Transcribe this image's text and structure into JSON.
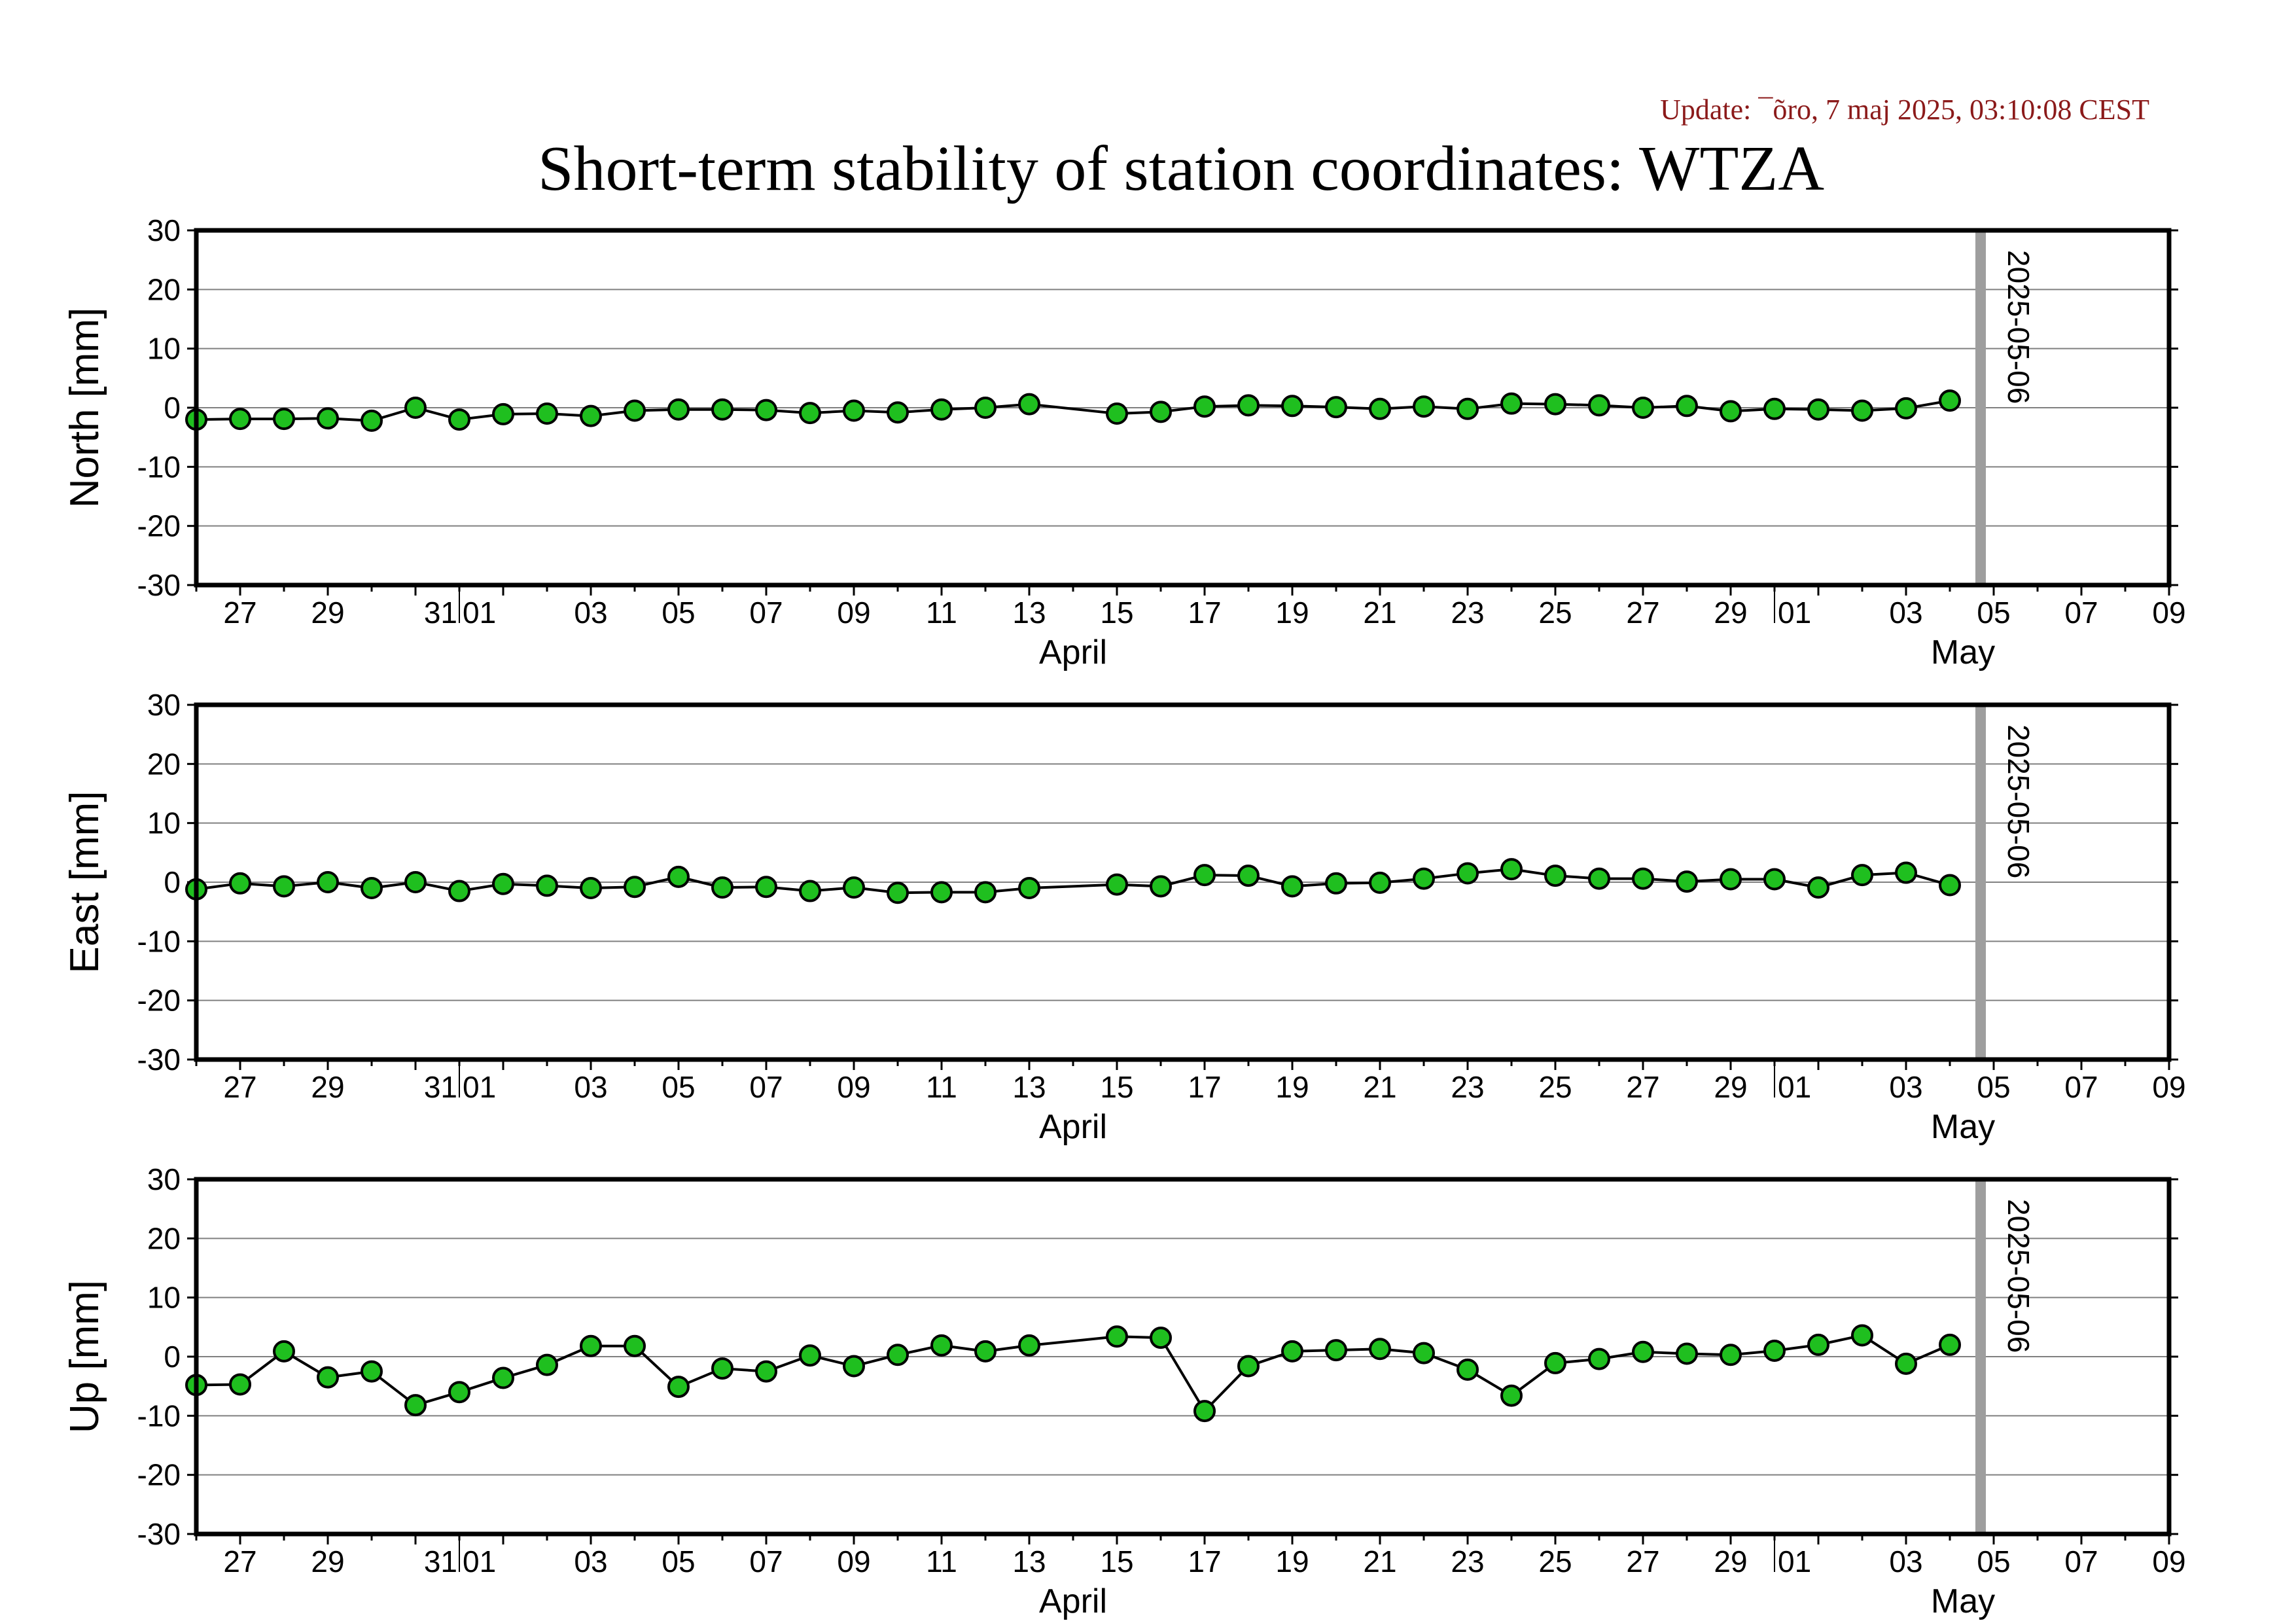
{
  "update_text": "Update: ¯õro, 7 maj 2025, 03:10:08 CEST",
  "title": "Short-term stability of station coordinates: WTZA",
  "colors": {
    "marker_fill": "#1fbf1f",
    "marker_stroke": "#000000",
    "line": "#000000",
    "gridline": "#808080",
    "marker_line": "#9e9e9e",
    "update_text": "#8b1a1a"
  },
  "chart_data": [
    {
      "type": "line",
      "ylabel": "North [mm]",
      "ylim": [
        -30,
        30
      ],
      "yticks": [
        30,
        20,
        10,
        0,
        -10,
        -20,
        -30
      ],
      "grid": true,
      "xlim": [
        "2025-03-26",
        "2025-05-10"
      ],
      "x_tick_labels": [
        "27",
        "29",
        "31",
        "01",
        "03",
        "05",
        "07",
        "09",
        "11",
        "13",
        "15",
        "17",
        "19",
        "21",
        "23",
        "25",
        "27",
        "29",
        "01",
        "03",
        "05",
        "07",
        "09"
      ],
      "month_labels": [
        "April",
        "May"
      ],
      "marker_label": "2025-05-06",
      "series": [
        {
          "x": [
            "2025-03-26",
            "2025-03-27",
            "2025-03-28",
            "2025-03-29",
            "2025-03-30",
            "2025-03-31",
            "2025-04-01",
            "2025-04-02",
            "2025-04-03",
            "2025-04-04",
            "2025-04-05",
            "2025-04-06",
            "2025-04-07",
            "2025-04-08",
            "2025-04-09",
            "2025-04-10",
            "2025-04-11",
            "2025-04-12",
            "2025-04-13",
            "2025-04-14",
            "2025-04-16",
            "2025-04-17",
            "2025-04-18",
            "2025-04-19",
            "2025-04-20",
            "2025-04-21",
            "2025-04-22",
            "2025-04-23",
            "2025-04-24",
            "2025-04-25",
            "2025-04-26",
            "2025-04-27",
            "2025-04-28",
            "2025-04-29",
            "2025-04-30",
            "2025-05-01",
            "2025-05-02",
            "2025-05-03",
            "2025-05-04",
            "2025-05-05"
          ],
          "values": [
            -2.0,
            -1.9,
            -1.9,
            -1.8,
            -2.2,
            0.0,
            -2.0,
            -1.1,
            -1.0,
            -1.4,
            -0.5,
            -0.3,
            -0.3,
            -0.4,
            -0.9,
            -0.5,
            -0.8,
            -0.3,
            0.0,
            0.6,
            -1.0,
            -0.7,
            0.2,
            0.4,
            0.3,
            0.1,
            -0.2,
            0.2,
            -0.2,
            0.7,
            0.6,
            0.4,
            0.0,
            0.3,
            -0.6,
            -0.2,
            -0.3,
            -0.5,
            -0.1,
            1.2
          ]
        }
      ]
    },
    {
      "type": "line",
      "ylabel": "East [mm]",
      "ylim": [
        -30,
        30
      ],
      "yticks": [
        30,
        20,
        10,
        0,
        -10,
        -20,
        -30
      ],
      "grid": true,
      "xlim": [
        "2025-03-26",
        "2025-05-10"
      ],
      "x_tick_labels": [
        "27",
        "29",
        "31",
        "01",
        "03",
        "05",
        "07",
        "09",
        "11",
        "13",
        "15",
        "17",
        "19",
        "21",
        "23",
        "25",
        "27",
        "29",
        "01",
        "03",
        "05",
        "07",
        "09"
      ],
      "month_labels": [
        "April",
        "May"
      ],
      "marker_label": "2025-05-06",
      "series": [
        {
          "x": [
            "2025-03-26",
            "2025-03-27",
            "2025-03-28",
            "2025-03-29",
            "2025-03-30",
            "2025-03-31",
            "2025-04-01",
            "2025-04-02",
            "2025-04-03",
            "2025-04-04",
            "2025-04-05",
            "2025-04-06",
            "2025-04-07",
            "2025-04-08",
            "2025-04-09",
            "2025-04-10",
            "2025-04-11",
            "2025-04-12",
            "2025-04-13",
            "2025-04-14",
            "2025-04-16",
            "2025-04-17",
            "2025-04-18",
            "2025-04-19",
            "2025-04-20",
            "2025-04-21",
            "2025-04-22",
            "2025-04-23",
            "2025-04-24",
            "2025-04-25",
            "2025-04-26",
            "2025-04-27",
            "2025-04-28",
            "2025-04-29",
            "2025-04-30",
            "2025-05-01",
            "2025-05-02",
            "2025-05-03",
            "2025-05-04",
            "2025-05-05"
          ],
          "values": [
            -1.2,
            -0.2,
            -0.7,
            0.0,
            -1.0,
            0.0,
            -1.5,
            -0.3,
            -0.6,
            -1.0,
            -0.8,
            0.9,
            -0.9,
            -0.8,
            -1.5,
            -0.9,
            -1.8,
            -1.7,
            -1.7,
            -1.0,
            -0.4,
            -0.7,
            1.2,
            1.1,
            -0.7,
            -0.2,
            -0.1,
            0.6,
            1.5,
            2.2,
            1.1,
            0.6,
            0.6,
            0.1,
            0.5,
            0.5,
            -0.9,
            1.2,
            1.6,
            -0.5
          ]
        }
      ]
    },
    {
      "type": "line",
      "ylabel": "Up [mm]",
      "ylim": [
        -30,
        30
      ],
      "yticks": [
        30,
        20,
        10,
        0,
        -10,
        -20,
        -30
      ],
      "grid": true,
      "xlim": [
        "2025-03-26",
        "2025-05-10"
      ],
      "x_tick_labels": [
        "27",
        "29",
        "31",
        "01",
        "03",
        "05",
        "07",
        "09",
        "11",
        "13",
        "15",
        "17",
        "19",
        "21",
        "23",
        "25",
        "27",
        "29",
        "01",
        "03",
        "05",
        "07",
        "09"
      ],
      "month_labels": [
        "April",
        "May"
      ],
      "marker_label": "2025-05-06",
      "series": [
        {
          "x": [
            "2025-03-26",
            "2025-03-27",
            "2025-03-28",
            "2025-03-29",
            "2025-03-30",
            "2025-03-31",
            "2025-04-01",
            "2025-04-02",
            "2025-04-03",
            "2025-04-04",
            "2025-04-05",
            "2025-04-06",
            "2025-04-07",
            "2025-04-08",
            "2025-04-09",
            "2025-04-10",
            "2025-04-11",
            "2025-04-12",
            "2025-04-13",
            "2025-04-14",
            "2025-04-16",
            "2025-04-17",
            "2025-04-18",
            "2025-04-19",
            "2025-04-20",
            "2025-04-21",
            "2025-04-22",
            "2025-04-23",
            "2025-04-24",
            "2025-04-25",
            "2025-04-26",
            "2025-04-27",
            "2025-04-28",
            "2025-04-29",
            "2025-04-30",
            "2025-05-01",
            "2025-05-02",
            "2025-05-03",
            "2025-05-04",
            "2025-05-05"
          ],
          "values": [
            -4.8,
            -4.7,
            0.9,
            -3.5,
            -2.5,
            -8.2,
            -6.0,
            -3.6,
            -1.4,
            1.8,
            1.8,
            -5.1,
            -2.0,
            -2.5,
            0.2,
            -1.6,
            0.3,
            1.9,
            0.9,
            1.9,
            3.4,
            3.2,
            -9.2,
            -1.6,
            0.9,
            1.1,
            1.3,
            0.6,
            -2.2,
            -6.6,
            -1.1,
            -0.4,
            0.8,
            0.5,
            0.3,
            1.0,
            2.0,
            3.6,
            -1.2,
            2.0
          ]
        }
      ]
    }
  ]
}
